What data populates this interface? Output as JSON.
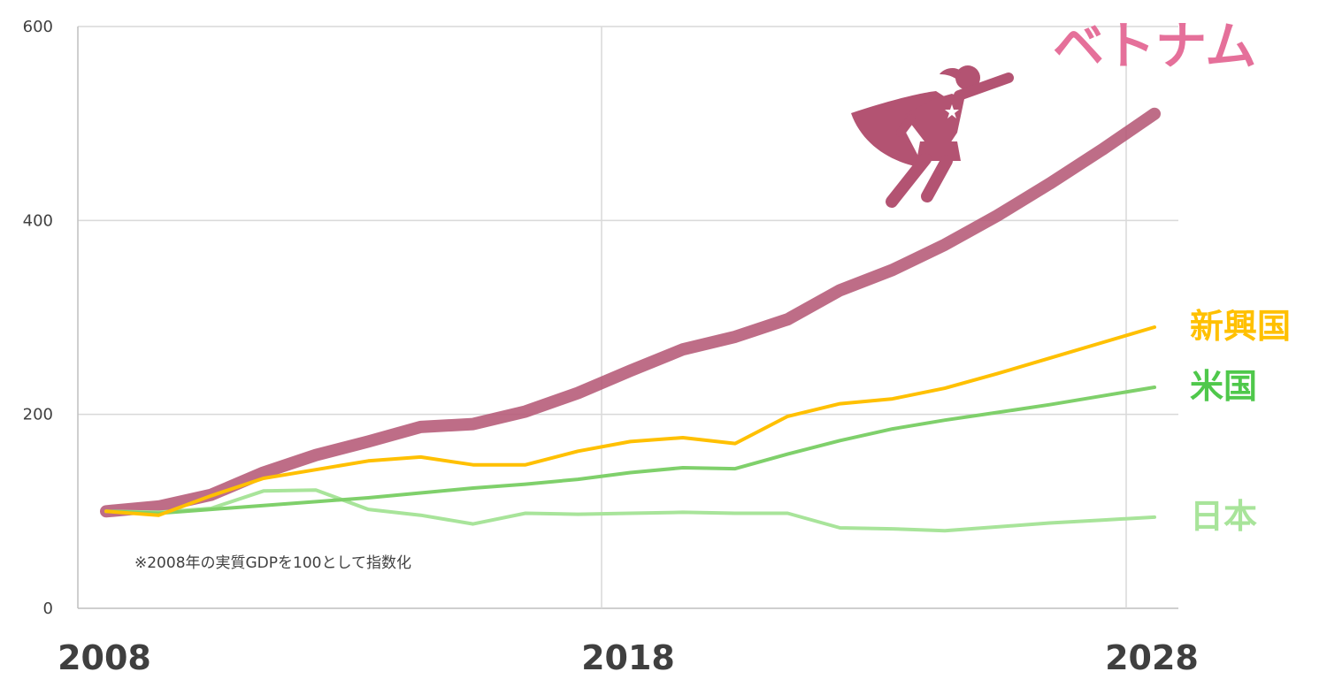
{
  "chart_data": {
    "type": "line",
    "x": [
      2008,
      2009,
      2010,
      2011,
      2012,
      2013,
      2014,
      2015,
      2016,
      2017,
      2018,
      2019,
      2020,
      2021,
      2022,
      2023,
      2024,
      2025,
      2026,
      2027,
      2028
    ],
    "ylim": [
      0,
      600
    ],
    "xlim": [
      2008,
      2028
    ],
    "yticks": [
      "0",
      "200",
      "400",
      "600"
    ],
    "xticks": [
      "2008",
      "2018",
      "2028"
    ],
    "grid": true,
    "legend": "direct labels at right end of each line",
    "note": "※2008年の実質GDPを100として指数化",
    "series": [
      {
        "name": "ベトナム",
        "color": "#b35372",
        "label_color": "#e5709a",
        "width": 14,
        "opacity": 0.85,
        "values": [
          100,
          105,
          117,
          140,
          158,
          172,
          187,
          190,
          203,
          222,
          245,
          267,
          280,
          298,
          328,
          349,
          375,
          405,
          438,
          473,
          510
        ]
      },
      {
        "name": "新興国",
        "color": "#ffc000",
        "label_color": "#ffc000",
        "width": 4,
        "opacity": 1,
        "values": [
          100,
          96,
          116,
          134,
          143,
          152,
          156,
          148,
          148,
          162,
          172,
          176,
          170,
          198,
          211,
          216,
          227,
          242,
          258,
          274,
          290
        ]
      },
      {
        "name": "米国",
        "color": "#7fd06b",
        "label_color": "#4fc84b",
        "width": 4,
        "opacity": 1,
        "values": [
          100,
          98,
          102,
          106,
          110,
          114,
          119,
          124,
          128,
          133,
          140,
          145,
          144,
          159,
          173,
          185,
          194,
          202,
          210,
          219,
          228
        ]
      },
      {
        "name": "日本",
        "color": "#a8e49a",
        "label_color": "#a8e49a",
        "width": 4,
        "opacity": 1,
        "values": [
          100,
          99,
          103,
          121,
          122,
          102,
          96,
          87,
          98,
          97,
          98,
          99,
          98,
          98,
          83,
          82,
          80,
          84,
          88,
          91,
          94
        ]
      }
    ]
  },
  "decoration": {
    "icon": "flying-superhero-icon",
    "icon_color": "#b35372"
  }
}
